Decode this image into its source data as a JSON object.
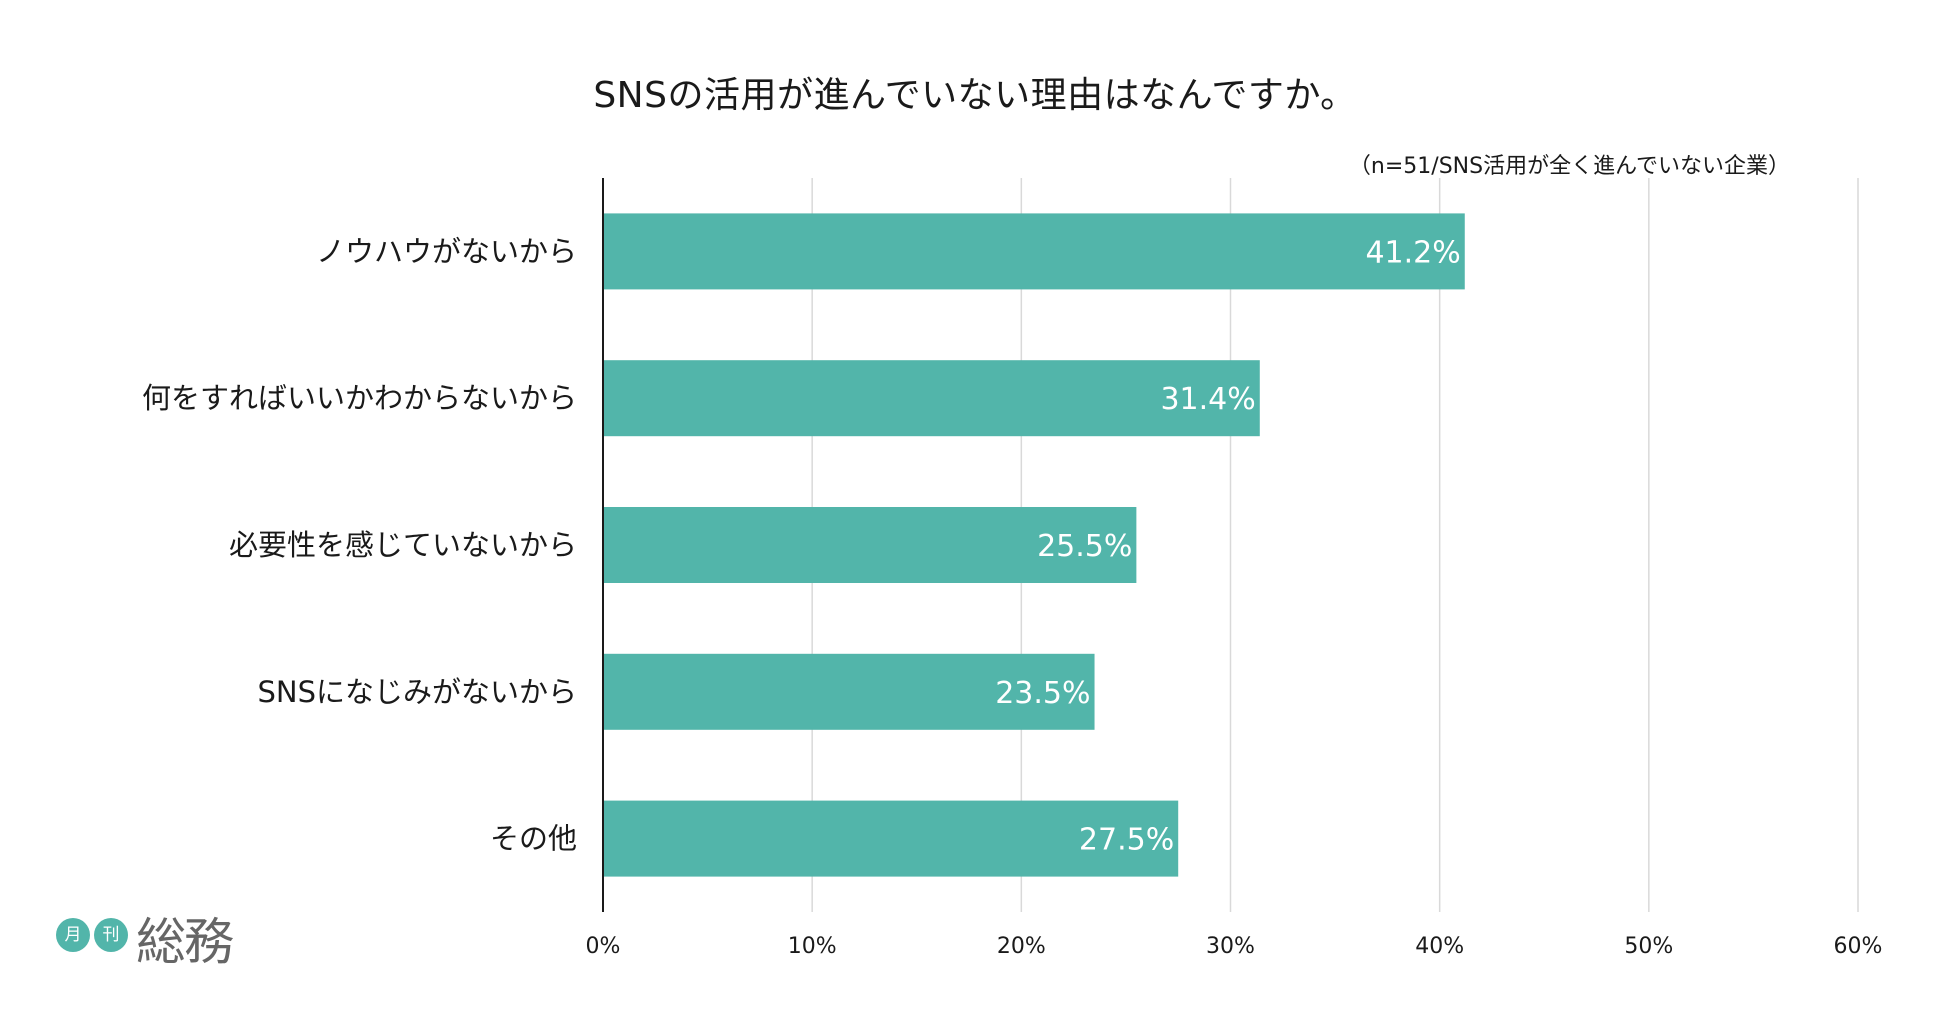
{
  "title": "SNSの活用が進んでいない理由はなんですか。",
  "subtitle": "（n=51/SNS活用が全く進んでいない企業）",
  "logo": {
    "badge_1": "月",
    "badge_2": "刊",
    "word": "総務"
  },
  "colors": {
    "bar": "#52b5aa",
    "grid": "#d9d9d9",
    "axis": "#1a1a1a",
    "text": "#1a1a1a",
    "data_label": "#ffffff"
  },
  "chart_data": {
    "type": "bar",
    "orientation": "horizontal",
    "categories": [
      "ノウハウがないから",
      "何をすればいいかわからないから",
      "必要性を感じていないから",
      "SNSになじみがないから",
      "その他"
    ],
    "values": [
      41.2,
      31.4,
      25.5,
      23.5,
      27.5
    ],
    "data_labels": [
      "41.2%",
      "31.4%",
      "25.5%",
      "23.5%",
      "27.5%"
    ],
    "xlim": [
      0,
      60
    ],
    "xticks": [
      0,
      10,
      20,
      30,
      40,
      50,
      60
    ],
    "xtick_labels": [
      "0%",
      "10%",
      "20%",
      "30%",
      "40%",
      "50%",
      "60%"
    ],
    "grid": true,
    "legend": "none"
  }
}
